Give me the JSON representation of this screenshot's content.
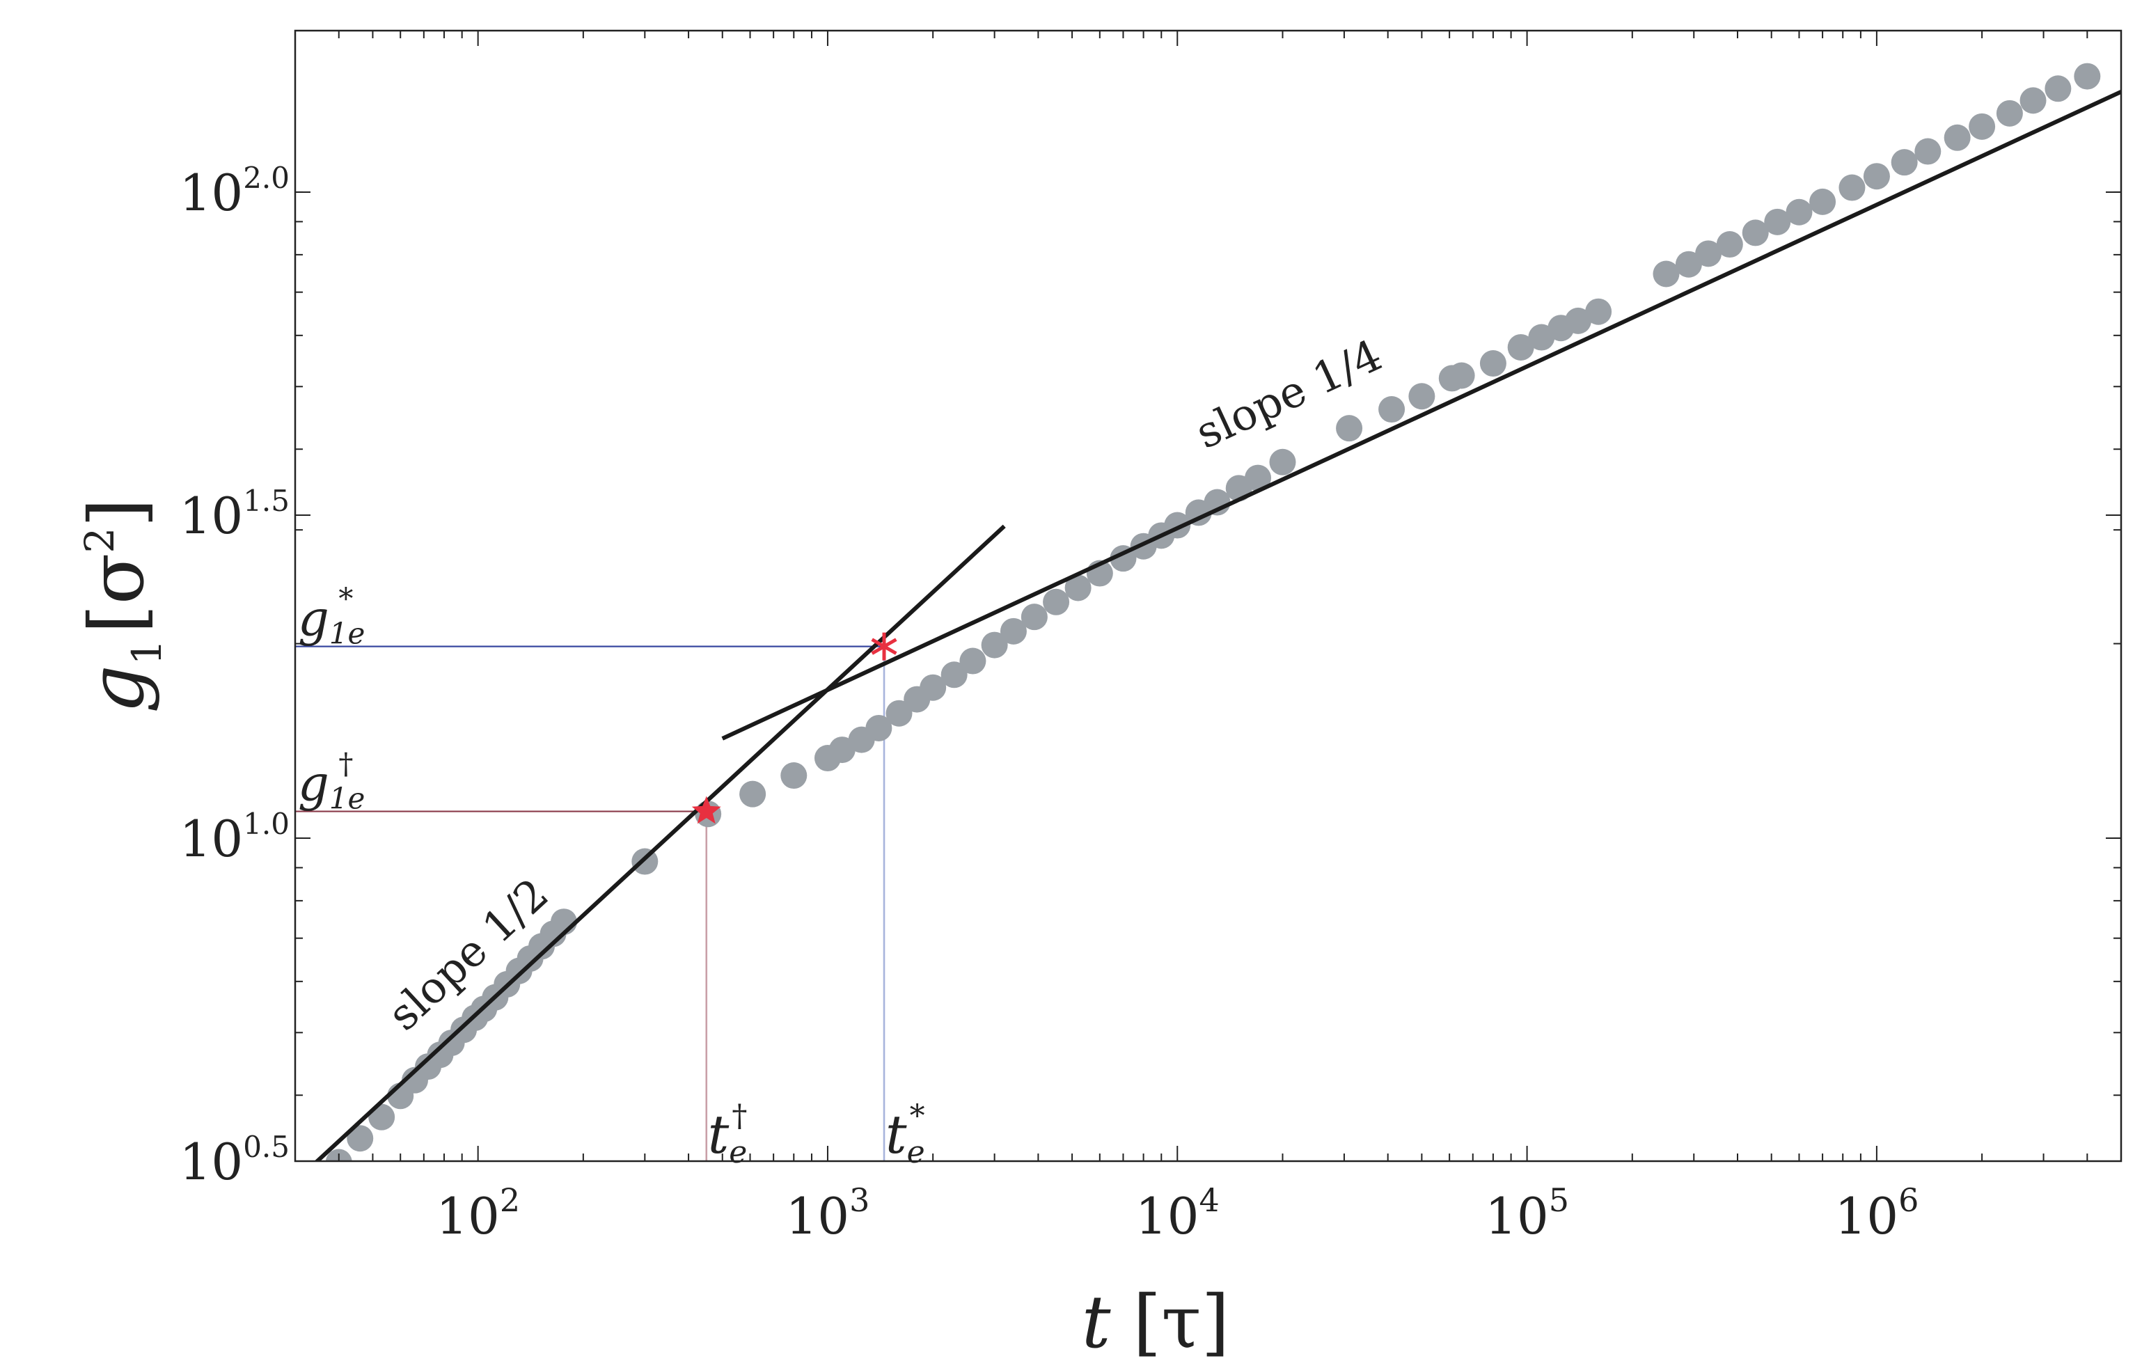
{
  "chart_data": {
    "type": "scatter",
    "x_scale": "log",
    "y_scale": "log",
    "xlim": [
      30,
      5000000
    ],
    "ylim": [
      3.162,
      177.8
    ],
    "x_ticks": [
      {
        "value": 100,
        "base": "10",
        "exp": "2"
      },
      {
        "value": 1000,
        "base": "10",
        "exp": "3"
      },
      {
        "value": 10000,
        "base": "10",
        "exp": "4"
      },
      {
        "value": 100000,
        "base": "10",
        "exp": "5"
      },
      {
        "value": 1000000,
        "base": "10",
        "exp": "6"
      }
    ],
    "y_ticks": [
      {
        "value": 3.162,
        "base": "10",
        "exp": "0.5"
      },
      {
        "value": 10,
        "base": "10",
        "exp": "1.0"
      },
      {
        "value": 31.62,
        "base": "10",
        "exp": "1.5"
      },
      {
        "value": 100,
        "base": "10",
        "exp": "2.0"
      }
    ],
    "xlabel": {
      "main": "t",
      "unit": "[τ]"
    },
    "ylabel": {
      "main": "g",
      "sub": "1",
      "unit_open": "[σ",
      "unit_sup": "2",
      "unit_close": "]"
    },
    "grid": false,
    "marker_color": "#9aa0a6",
    "line_color": "#1a1a1a",
    "series": [
      {
        "x": [
          40,
          46,
          53,
          60,
          66,
          72,
          78,
          84,
          91,
          98,
          104,
          112,
          121,
          131,
          141,
          152,
          164,
          176,
          300,
          455,
          610,
          800,
          1000,
          1100,
          1250,
          1400,
          1600,
          1800,
          2000,
          2300,
          2600,
          3000,
          3400,
          3900,
          4500,
          5200,
          6000,
          7000,
          8000,
          9000,
          10000,
          11500,
          13000,
          15000,
          17000,
          20000,
          31000,
          41000,
          50000,
          61000,
          65000,
          80000,
          96000,
          110000,
          125000,
          140000,
          160000,
          250000,
          290000,
          330000,
          380000,
          450000,
          520000,
          600000,
          700000,
          850000,
          1000000,
          1200000,
          1400000,
          1700000,
          2000000,
          2400000,
          2800000,
          3300000,
          4000000
        ],
        "y": [
          3.15,
          3.43,
          3.7,
          3.99,
          4.22,
          4.43,
          4.62,
          4.82,
          5.05,
          5.27,
          5.44,
          5.67,
          5.94,
          6.23,
          6.51,
          6.8,
          7.11,
          7.42,
          9.2,
          10.9,
          11.7,
          12.5,
          13.3,
          13.7,
          14.2,
          14.8,
          15.6,
          16.4,
          17.1,
          17.9,
          18.8,
          19.9,
          20.9,
          22.0,
          23.2,
          24.4,
          25.7,
          27.1,
          28.3,
          29.4,
          30.5,
          31.9,
          33.1,
          34.8,
          36.1,
          38.2,
          43.1,
          46.1,
          48.3,
          51.5,
          52.0,
          54.3,
          57.5,
          59.6,
          61.6,
          63.2,
          65.3,
          74.7,
          77.3,
          80.3,
          83.0,
          86.5,
          89.9,
          93.1,
          96.6,
          101.6,
          105.8,
          111.2,
          115.6,
          121.4,
          126.3,
          132.4,
          138.6,
          144.6,
          151.1
        ]
      }
    ],
    "fit_lines": [
      {
        "label": "slope 1/2",
        "slope": 0.5,
        "x": [
          30,
          3200
        ],
        "y": [
          2.94,
          30.4
        ]
      },
      {
        "label": "slope 1/4",
        "slope": 0.25,
        "x": [
          500,
          5000000
        ],
        "y": [
          14.26,
          143.0
        ]
      }
    ],
    "crossovers": [
      {
        "x": 450,
        "y": 11.0,
        "marker": "star",
        "color": "#e83040",
        "guide_color": "#c9a0a8",
        "guide_h_color": "#8a3a4a",
        "x_label": {
          "base": "t",
          "sub": "e",
          "sup": "†"
        },
        "y_label": {
          "base": "g",
          "sub": "1e",
          "sup": "†"
        }
      },
      {
        "x": 1450,
        "y": 19.8,
        "marker": "asterisk",
        "color": "#e83040",
        "guide_color": "#a8b4dc",
        "guide_h_color": "#3848a0",
        "x_label": {
          "base": "t",
          "sub": "e",
          "sup": "*"
        },
        "y_label": {
          "base": "g",
          "sub": "1e",
          "sup": "*"
        }
      }
    ]
  }
}
